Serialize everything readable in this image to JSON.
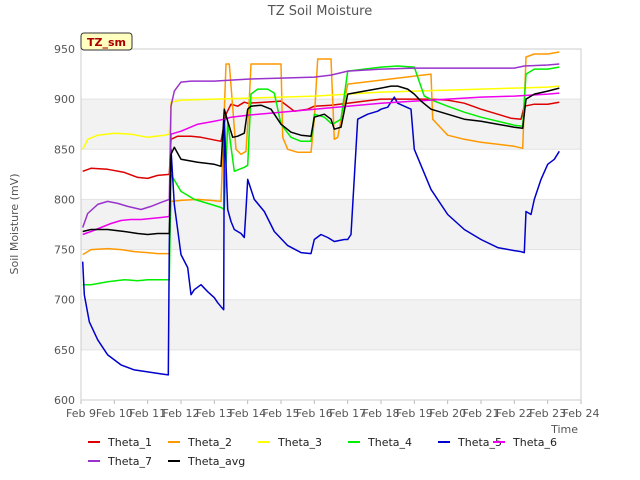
{
  "chart_data": {
    "type": "line",
    "title": "TZ Soil Moisture",
    "xlabel": "Time",
    "ylabel": "Soil Moisture (mV)",
    "tag": "TZ_sm",
    "ylim": [
      600,
      950
    ],
    "xlim": [
      0,
      15
    ],
    "yticks": [
      600,
      650,
      700,
      750,
      800,
      850,
      900,
      950
    ],
    "xticks": [
      0,
      1,
      2,
      3,
      4,
      5,
      6,
      7,
      8,
      9,
      10,
      11,
      12,
      13,
      14,
      15
    ],
    "xtick_labels": [
      "Feb 9",
      "Feb 10",
      "Feb 11",
      "Feb 12",
      "Feb 13",
      "Feb 14",
      "Feb 15",
      "Feb 16",
      "Feb 17",
      "Feb 18",
      "Feb 19",
      "Feb 20",
      "Feb 21",
      "Feb 22",
      "Feb 23",
      "Feb 24"
    ],
    "bands": [
      [
        650,
        700
      ],
      [
        750,
        800
      ],
      [
        850,
        900
      ]
    ],
    "legend_position": "bottom",
    "series": [
      {
        "name": "Theta_1",
        "color": "#dd0000",
        "x": [
          0.05,
          0.3,
          0.8,
          1.3,
          1.7,
          2.0,
          2.3,
          2.65,
          2.7,
          2.9,
          3.3,
          3.6,
          3.9,
          4.2,
          4.35,
          4.5,
          4.7,
          4.9,
          5.0,
          5.5,
          6.0,
          6.4,
          6.8,
          7.0,
          7.5,
          8.0,
          8.5,
          9.0,
          9.5,
          10.0,
          10.5,
          11.0,
          11.5,
          12.0,
          12.5,
          12.9,
          13.2,
          13.3,
          13.6,
          14.0,
          14.35
        ],
        "values": [
          828,
          831,
          830,
          827,
          822,
          821,
          824,
          825,
          860,
          863,
          863,
          862,
          860,
          858,
          885,
          895,
          893,
          897,
          896,
          897,
          898,
          888,
          890,
          893,
          894,
          896,
          898,
          900,
          900,
          900,
          900,
          899,
          896,
          890,
          885,
          881,
          880,
          893,
          895,
          895,
          897
        ]
      },
      {
        "name": "Theta_2",
        "color": "#ff9900",
        "x": [
          0.05,
          0.3,
          0.8,
          1.2,
          1.6,
          2.0,
          2.3,
          2.65,
          2.7,
          3.0,
          3.5,
          3.9,
          4.2,
          4.35,
          4.45,
          4.65,
          4.8,
          4.95,
          5.05,
          5.1,
          5.5,
          6.0,
          6.05,
          6.2,
          6.5,
          6.9,
          7.0,
          7.1,
          7.5,
          7.6,
          7.7,
          8.0,
          8.5,
          9.0,
          9.5,
          10.0,
          10.5,
          10.55,
          11.0,
          11.5,
          12.0,
          12.5,
          13.0,
          13.25,
          13.35,
          13.6,
          14.0,
          14.35
        ],
        "values": [
          745,
          750,
          751,
          750,
          748,
          747,
          746,
          746,
          798,
          799,
          800,
          799,
          798,
          935,
          935,
          850,
          845,
          848,
          900,
          935,
          935,
          935,
          862,
          850,
          847,
          847,
          880,
          940,
          940,
          860,
          862,
          915,
          917,
          919,
          921,
          923,
          925,
          880,
          864,
          860,
          857,
          855,
          853,
          851,
          942,
          945,
          945,
          947
        ]
      },
      {
        "name": "Theta_3",
        "color": "#ffff00",
        "x": [
          0.05,
          0.2,
          0.5,
          1.0,
          1.5,
          2.0,
          2.5,
          2.65,
          2.7,
          3.0,
          4.0,
          5.0,
          6.0,
          7.0,
          8.0,
          9.0,
          10.0,
          11.0,
          12.0,
          13.0,
          14.0,
          14.35
        ],
        "values": [
          850,
          860,
          864,
          866,
          865,
          862,
          864,
          865,
          897,
          899,
          900,
          901,
          902,
          903,
          905,
          907,
          908,
          909,
          910,
          911,
          912,
          913
        ]
      },
      {
        "name": "Theta_4",
        "color": "#00ee00",
        "x": [
          0.05,
          0.3,
          0.8,
          1.3,
          1.7,
          2.0,
          2.3,
          2.65,
          2.7,
          3.0,
          3.4,
          3.8,
          4.2,
          4.3,
          4.4,
          4.6,
          4.9,
          5.0,
          5.1,
          5.3,
          5.6,
          5.8,
          6.0,
          6.3,
          6.6,
          6.9,
          7.0,
          7.3,
          7.5,
          7.6,
          7.8,
          8.0,
          8.5,
          9.0,
          9.5,
          10.0,
          10.1,
          10.3,
          10.6,
          11.0,
          11.5,
          12.0,
          12.5,
          13.0,
          13.25,
          13.35,
          13.6,
          14.0,
          14.35
        ],
        "values": [
          715,
          715,
          718,
          720,
          719,
          720,
          720,
          720,
          825,
          808,
          800,
          796,
          792,
          790,
          877,
          828,
          832,
          834,
          905,
          910,
          910,
          906,
          875,
          862,
          858,
          858,
          885,
          882,
          876,
          876,
          880,
          928,
          930,
          932,
          933,
          932,
          922,
          903,
          898,
          893,
          887,
          882,
          878,
          874,
          873,
          925,
          930,
          930,
          932
        ]
      },
      {
        "name": "Theta_5",
        "color": "#0000cc",
        "x": [
          0.05,
          0.1,
          0.25,
          0.5,
          0.8,
          1.2,
          1.6,
          2.0,
          2.4,
          2.62,
          2.65,
          2.7,
          2.8,
          3.0,
          3.2,
          3.3,
          3.4,
          3.6,
          3.8,
          4.0,
          4.1,
          4.2,
          4.28,
          4.3,
          4.4,
          4.5,
          4.6,
          4.8,
          4.9,
          4.95,
          5.0,
          5.2,
          5.5,
          5.8,
          6.2,
          6.6,
          6.9,
          7.0,
          7.2,
          7.4,
          7.6,
          7.9,
          8.0,
          8.1,
          8.3,
          8.6,
          8.9,
          9.0,
          9.2,
          9.4,
          9.5,
          9.7,
          9.9,
          10.0,
          10.5,
          11.0,
          11.5,
          12.0,
          12.5,
          13.0,
          13.2,
          13.3,
          13.35,
          13.5,
          13.6,
          13.8,
          14.0,
          14.2,
          14.35
        ],
        "values": [
          738,
          705,
          678,
          660,
          645,
          635,
          630,
          628,
          626,
          625,
          755,
          850,
          795,
          745,
          732,
          705,
          710,
          715,
          708,
          702,
          697,
          693,
          690,
          880,
          790,
          778,
          770,
          766,
          762,
          790,
          820,
          800,
          788,
          768,
          754,
          747,
          746,
          760,
          765,
          762,
          758,
          760,
          760,
          765,
          880,
          885,
          888,
          890,
          892,
          902,
          896,
          893,
          890,
          850,
          810,
          785,
          770,
          760,
          752,
          749,
          748,
          747,
          788,
          785,
          800,
          820,
          835,
          840,
          848
        ]
      },
      {
        "name": "Theta_6",
        "color": "#ee00ee",
        "x": [
          0.05,
          0.3,
          0.6,
          0.9,
          1.2,
          1.5,
          1.8,
          2.1,
          2.4,
          2.65,
          2.7,
          3.0,
          3.5,
          4.0,
          4.3,
          4.5,
          5.0,
          6.0,
          7.0,
          8.0,
          9.0,
          10.0,
          11.0,
          12.0,
          13.0,
          14.0,
          14.35
        ],
        "values": [
          765,
          768,
          772,
          776,
          779,
          780,
          780,
          781,
          782,
          783,
          865,
          868,
          875,
          878,
          880,
          882,
          884,
          887,
          890,
          893,
          896,
          898,
          900,
          902,
          903,
          905,
          906
        ]
      },
      {
        "name": "Theta_7",
        "color": "#9933cc",
        "x": [
          0.05,
          0.2,
          0.5,
          0.8,
          1.1,
          1.4,
          1.8,
          2.1,
          2.4,
          2.65,
          2.7,
          2.8,
          3.0,
          3.3,
          3.7,
          4.0,
          4.5,
          5.0,
          6.0,
          7.0,
          7.5,
          8.0,
          9.0,
          10.0,
          11.0,
          12.0,
          13.0,
          13.3,
          14.0,
          14.35
        ],
        "values": [
          772,
          786,
          795,
          798,
          796,
          793,
          790,
          793,
          797,
          800,
          893,
          908,
          917,
          918,
          918,
          918,
          919,
          920,
          921,
          922,
          924,
          928,
          930,
          931,
          931,
          931,
          931,
          933,
          934,
          935
        ]
      },
      {
        "name": "Theta_avg",
        "color": "#000000",
        "x": [
          0.05,
          0.3,
          0.8,
          1.3,
          1.7,
          2.0,
          2.3,
          2.65,
          2.7,
          2.8,
          3.0,
          3.5,
          4.0,
          4.2,
          4.3,
          4.4,
          4.55,
          4.7,
          4.9,
          5.0,
          5.1,
          5.4,
          5.7,
          6.0,
          6.3,
          6.6,
          6.9,
          7.0,
          7.3,
          7.5,
          7.6,
          7.8,
          8.0,
          8.5,
          9.0,
          9.3,
          9.5,
          9.8,
          10.0,
          10.2,
          10.5,
          11.0,
          11.5,
          12.0,
          12.5,
          13.0,
          13.25,
          13.35,
          13.6,
          14.0,
          14.35
        ],
        "values": [
          768,
          770,
          770,
          768,
          766,
          765,
          766,
          766,
          845,
          852,
          840,
          837,
          835,
          833,
          890,
          878,
          862,
          863,
          866,
          890,
          893,
          894,
          890,
          875,
          867,
          864,
          863,
          882,
          885,
          880,
          870,
          872,
          905,
          908,
          911,
          913,
          913,
          910,
          905,
          898,
          890,
          885,
          880,
          878,
          875,
          872,
          871,
          900,
          905,
          908,
          911
        ]
      }
    ]
  }
}
